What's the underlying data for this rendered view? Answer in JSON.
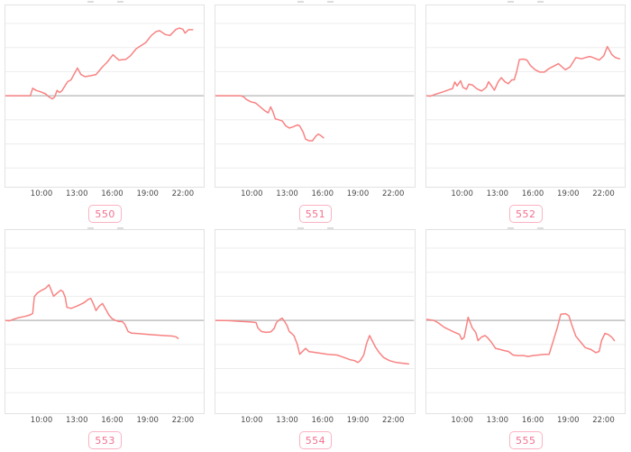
{
  "colors": {
    "background": "#ffffff",
    "line": "#f88282",
    "gridline": "#ededed",
    "zero_line": "#b5b5b5",
    "panel_border": "#e2e2e2",
    "tick_text": "#4a4a4a",
    "badge_border": "#fab3c3",
    "badge_text": "#f2708f"
  },
  "chart_data": {
    "type": "line",
    "title": "",
    "xlabel": "",
    "ylabel": "",
    "x_ticks": [
      "10:00",
      "13:00",
      "16:00",
      "19:00",
      "22:00"
    ],
    "tick_hours": [
      10,
      13,
      16,
      19,
      22
    ],
    "x_range_hours": [
      6.86,
      23.92
    ],
    "grid": true,
    "gridline_count": 7,
    "baseline_gridline_index": 3,
    "y_units_per_gridline": 1,
    "note_y_units": "no y-axis labels visible; values are in gridline units relative to the darker baseline (positive = above)",
    "charts": [
      {
        "badge": "550",
        "points": [
          [
            6.86,
            0
          ],
          [
            9.0,
            0
          ],
          [
            9.2,
            0.31
          ],
          [
            9.5,
            0.22
          ],
          [
            9.9,
            0.16
          ],
          [
            10.3,
            0.08
          ],
          [
            10.6,
            -0.05
          ],
          [
            10.9,
            -0.13
          ],
          [
            11.1,
            -0.05
          ],
          [
            11.3,
            0.22
          ],
          [
            11.5,
            0.13
          ],
          [
            11.7,
            0.2
          ],
          [
            12.2,
            0.58
          ],
          [
            12.5,
            0.66
          ],
          [
            13.05,
            1.15
          ],
          [
            13.35,
            0.88
          ],
          [
            13.7,
            0.79
          ],
          [
            14.2,
            0.83
          ],
          [
            14.65,
            0.88
          ],
          [
            15.2,
            1.2
          ],
          [
            15.6,
            1.39
          ],
          [
            16.1,
            1.7
          ],
          [
            16.6,
            1.48
          ],
          [
            17.2,
            1.51
          ],
          [
            17.6,
            1.66
          ],
          [
            18.1,
            1.95
          ],
          [
            18.5,
            2.08
          ],
          [
            18.9,
            2.2
          ],
          [
            19.4,
            2.5
          ],
          [
            19.8,
            2.66
          ],
          [
            20.1,
            2.7
          ],
          [
            20.6,
            2.54
          ],
          [
            21.0,
            2.5
          ],
          [
            21.5,
            2.75
          ],
          [
            21.8,
            2.81
          ],
          [
            22.1,
            2.76
          ],
          [
            22.3,
            2.6
          ],
          [
            22.6,
            2.74
          ],
          [
            22.95,
            2.74
          ]
        ]
      },
      {
        "badge": "551",
        "points": [
          [
            6.86,
            0
          ],
          [
            9.0,
            0
          ],
          [
            9.3,
            -0.05
          ],
          [
            9.5,
            -0.15
          ],
          [
            9.9,
            -0.25
          ],
          [
            10.3,
            -0.3
          ],
          [
            10.6,
            -0.42
          ],
          [
            11.1,
            -0.62
          ],
          [
            11.4,
            -0.71
          ],
          [
            11.6,
            -0.46
          ],
          [
            11.8,
            -0.67
          ],
          [
            12.0,
            -0.96
          ],
          [
            12.3,
            -1.0
          ],
          [
            12.6,
            -1.05
          ],
          [
            12.9,
            -1.25
          ],
          [
            13.2,
            -1.34
          ],
          [
            13.5,
            -1.3
          ],
          [
            13.9,
            -1.21
          ],
          [
            14.1,
            -1.25
          ],
          [
            14.4,
            -1.52
          ],
          [
            14.6,
            -1.8
          ],
          [
            14.9,
            -1.87
          ],
          [
            15.2,
            -1.87
          ],
          [
            15.5,
            -1.67
          ],
          [
            15.7,
            -1.59
          ],
          [
            15.9,
            -1.65
          ],
          [
            16.15,
            -1.75
          ]
        ]
      },
      {
        "badge": "552",
        "points": [
          [
            6.86,
            0
          ],
          [
            7.2,
            -0.02
          ],
          [
            7.7,
            0.07
          ],
          [
            8.3,
            0.16
          ],
          [
            8.9,
            0.27
          ],
          [
            9.1,
            0.29
          ],
          [
            9.3,
            0.57
          ],
          [
            9.5,
            0.41
          ],
          [
            9.8,
            0.62
          ],
          [
            10.0,
            0.35
          ],
          [
            10.3,
            0.27
          ],
          [
            10.5,
            0.48
          ],
          [
            10.8,
            0.45
          ],
          [
            11.2,
            0.29
          ],
          [
            11.6,
            0.2
          ],
          [
            12.0,
            0.35
          ],
          [
            12.2,
            0.58
          ],
          [
            12.5,
            0.38
          ],
          [
            12.7,
            0.23
          ],
          [
            13.05,
            0.6
          ],
          [
            13.3,
            0.75
          ],
          [
            13.6,
            0.58
          ],
          [
            13.9,
            0.5
          ],
          [
            14.2,
            0.66
          ],
          [
            14.4,
            0.66
          ],
          [
            14.6,
            0.98
          ],
          [
            14.85,
            1.5
          ],
          [
            15.2,
            1.52
          ],
          [
            15.5,
            1.48
          ],
          [
            15.8,
            1.25
          ],
          [
            16.2,
            1.08
          ],
          [
            16.6,
            0.98
          ],
          [
            17.0,
            0.98
          ],
          [
            17.4,
            1.13
          ],
          [
            17.8,
            1.23
          ],
          [
            18.2,
            1.33
          ],
          [
            18.5,
            1.2
          ],
          [
            18.8,
            1.08
          ],
          [
            19.2,
            1.2
          ],
          [
            19.7,
            1.58
          ],
          [
            20.2,
            1.53
          ],
          [
            20.5,
            1.58
          ],
          [
            20.9,
            1.63
          ],
          [
            21.2,
            1.58
          ],
          [
            21.7,
            1.48
          ],
          [
            22.1,
            1.66
          ],
          [
            22.4,
            2.04
          ],
          [
            22.8,
            1.7
          ],
          [
            23.1,
            1.58
          ],
          [
            23.45,
            1.53
          ]
        ]
      },
      {
        "badge": "553",
        "points": [
          [
            6.86,
            0
          ],
          [
            7.2,
            -0.02
          ],
          [
            7.9,
            0.1
          ],
          [
            8.5,
            0.16
          ],
          [
            9.0,
            0.23
          ],
          [
            9.2,
            0.29
          ],
          [
            9.35,
            0.98
          ],
          [
            9.6,
            1.13
          ],
          [
            9.9,
            1.23
          ],
          [
            10.3,
            1.33
          ],
          [
            10.6,
            1.48
          ],
          [
            10.8,
            1.25
          ],
          [
            11.0,
            1.0
          ],
          [
            11.3,
            1.13
          ],
          [
            11.6,
            1.25
          ],
          [
            11.8,
            1.2
          ],
          [
            12.0,
            0.95
          ],
          [
            12.15,
            0.54
          ],
          [
            12.5,
            0.5
          ],
          [
            13.05,
            0.6
          ],
          [
            13.6,
            0.73
          ],
          [
            14.0,
            0.88
          ],
          [
            14.2,
            0.91
          ],
          [
            14.4,
            0.7
          ],
          [
            14.65,
            0.41
          ],
          [
            14.9,
            0.58
          ],
          [
            15.2,
            0.7
          ],
          [
            15.5,
            0.45
          ],
          [
            15.75,
            0.23
          ],
          [
            16.0,
            0.08
          ],
          [
            16.3,
            0
          ],
          [
            16.6,
            -0.05
          ],
          [
            16.9,
            -0.05
          ],
          [
            17.1,
            -0.15
          ],
          [
            17.4,
            -0.46
          ],
          [
            17.7,
            -0.53
          ],
          [
            18.3,
            -0.55
          ],
          [
            19.3,
            -0.59
          ],
          [
            20.4,
            -0.63
          ],
          [
            21.2,
            -0.65
          ],
          [
            21.5,
            -0.68
          ],
          [
            21.7,
            -0.75
          ]
        ]
      },
      {
        "badge": "554",
        "points": [
          [
            6.86,
            0
          ],
          [
            8.0,
            -0.01
          ],
          [
            9.0,
            -0.04
          ],
          [
            9.8,
            -0.06
          ],
          [
            10.35,
            -0.09
          ],
          [
            10.5,
            -0.31
          ],
          [
            10.8,
            -0.46
          ],
          [
            11.2,
            -0.5
          ],
          [
            11.6,
            -0.48
          ],
          [
            11.9,
            -0.34
          ],
          [
            12.1,
            -0.09
          ],
          [
            12.4,
            0.04
          ],
          [
            12.6,
            0.09
          ],
          [
            12.8,
            -0.04
          ],
          [
            13.0,
            -0.21
          ],
          [
            13.2,
            -0.46
          ],
          [
            13.4,
            -0.54
          ],
          [
            13.6,
            -0.63
          ],
          [
            13.9,
            -1.0
          ],
          [
            14.1,
            -1.41
          ],
          [
            14.4,
            -1.26
          ],
          [
            14.6,
            -1.16
          ],
          [
            14.9,
            -1.3
          ],
          [
            15.2,
            -1.32
          ],
          [
            15.8,
            -1.36
          ],
          [
            16.5,
            -1.41
          ],
          [
            17.3,
            -1.44
          ],
          [
            17.9,
            -1.54
          ],
          [
            18.4,
            -1.63
          ],
          [
            18.8,
            -1.67
          ],
          [
            19.1,
            -1.75
          ],
          [
            19.3,
            -1.67
          ],
          [
            19.6,
            -1.44
          ],
          [
            19.85,
            -0.95
          ],
          [
            20.1,
            -0.63
          ],
          [
            20.35,
            -0.86
          ],
          [
            20.6,
            -1.1
          ],
          [
            20.9,
            -1.32
          ],
          [
            21.3,
            -1.54
          ],
          [
            21.8,
            -1.67
          ],
          [
            22.4,
            -1.75
          ],
          [
            23.1,
            -1.79
          ],
          [
            23.45,
            -1.81
          ]
        ]
      },
      {
        "badge": "555",
        "points": [
          [
            6.86,
            0.04
          ],
          [
            7.5,
            0
          ],
          [
            7.9,
            -0.11
          ],
          [
            8.4,
            -0.29
          ],
          [
            8.9,
            -0.41
          ],
          [
            9.3,
            -0.5
          ],
          [
            9.7,
            -0.58
          ],
          [
            9.9,
            -0.79
          ],
          [
            10.1,
            -0.71
          ],
          [
            10.45,
            0.13
          ],
          [
            10.8,
            -0.31
          ],
          [
            11.1,
            -0.5
          ],
          [
            11.3,
            -0.84
          ],
          [
            11.6,
            -0.69
          ],
          [
            11.9,
            -0.63
          ],
          [
            12.1,
            -0.71
          ],
          [
            12.4,
            -0.88
          ],
          [
            12.8,
            -1.16
          ],
          [
            13.2,
            -1.21
          ],
          [
            13.5,
            -1.25
          ],
          [
            13.9,
            -1.29
          ],
          [
            14.3,
            -1.44
          ],
          [
            14.65,
            -1.46
          ],
          [
            15.2,
            -1.46
          ],
          [
            15.6,
            -1.5
          ],
          [
            16.0,
            -1.46
          ],
          [
            16.5,
            -1.44
          ],
          [
            17.0,
            -1.41
          ],
          [
            17.4,
            -1.41
          ],
          [
            17.7,
            -0.94
          ],
          [
            18.1,
            -0.31
          ],
          [
            18.4,
            0.25
          ],
          [
            18.8,
            0.28
          ],
          [
            19.1,
            0.19
          ],
          [
            19.35,
            -0.19
          ],
          [
            19.7,
            -0.66
          ],
          [
            20.0,
            -0.84
          ],
          [
            20.5,
            -1.13
          ],
          [
            21.0,
            -1.21
          ],
          [
            21.4,
            -1.34
          ],
          [
            21.7,
            -1.29
          ],
          [
            21.9,
            -0.84
          ],
          [
            22.2,
            -0.54
          ],
          [
            22.5,
            -0.59
          ],
          [
            22.8,
            -0.71
          ],
          [
            23.0,
            -0.84
          ]
        ]
      }
    ]
  }
}
